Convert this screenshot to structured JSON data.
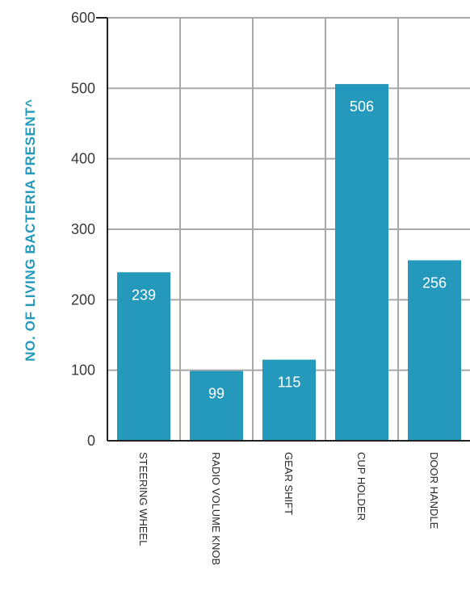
{
  "chart_data": {
    "type": "bar",
    "categories": [
      "STEERING WHEEL",
      "RADIO VOLUME KNOB",
      "GEAR SHIFT",
      "CUP HOLDER",
      "DOOR HANDLE"
    ],
    "values": [
      239,
      99,
      115,
      506,
      256
    ],
    "data_labels": [
      "239",
      "99",
      "115",
      "506",
      "256"
    ],
    "yticks": [
      "0",
      "100",
      "200",
      "300",
      "400",
      "500",
      "600"
    ],
    "ylim": [
      0,
      600
    ],
    "ylabel": "NO. OF LIVING BACTERIA PRESENT^",
    "xlabel": "",
    "title": "",
    "grid": true,
    "colors": {
      "bar": "#2499BB",
      "ylabel": "#2499BB",
      "grid": "#a8a8a8",
      "axis": "#222222"
    }
  }
}
